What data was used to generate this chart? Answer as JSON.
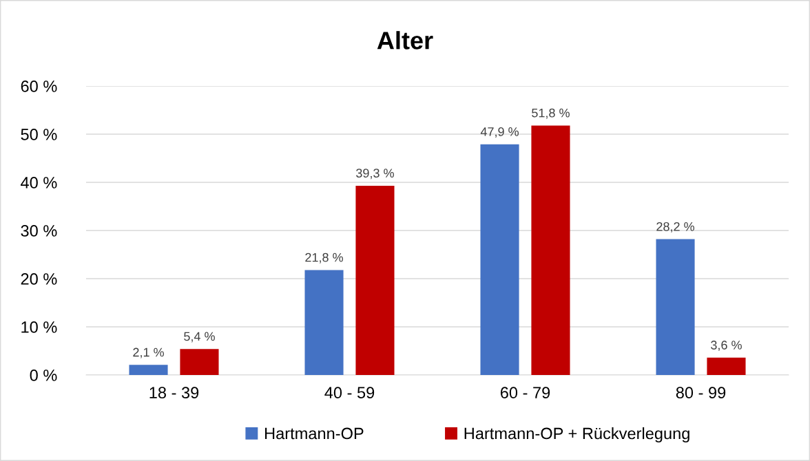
{
  "chart_data": {
    "type": "bar",
    "title": "Alter",
    "categories": [
      "18 - 39",
      "40 - 59",
      "60 - 79",
      "80 - 99"
    ],
    "series": [
      {
        "name": "Hartmann-OP",
        "color": "#4472c4",
        "values": [
          2.1,
          21.8,
          47.9,
          28.2
        ],
        "value_labels": [
          "2,1 %",
          "21,8 %",
          "47,9 %",
          "28,2 %"
        ]
      },
      {
        "name": "Hartmann-OP + Rückverlegung",
        "color": "#c00000",
        "values": [
          5.4,
          39.3,
          51.8,
          3.6
        ],
        "value_labels": [
          "5,4 %",
          "39,3 %",
          "51,8 %",
          "3,6 %"
        ]
      }
    ],
    "ylim": [
      0,
      60
    ],
    "yticks": [
      {
        "value": 0,
        "label": "0 %"
      },
      {
        "value": 10,
        "label": "10 %"
      },
      {
        "value": 20,
        "label": "20 %"
      },
      {
        "value": 30,
        "label": "30 %"
      },
      {
        "value": 40,
        "label": "40 %"
      },
      {
        "value": 50,
        "label": "50 %"
      },
      {
        "value": 60,
        "label": "60 %"
      }
    ],
    "grid": "y",
    "legend": "bottom"
  }
}
